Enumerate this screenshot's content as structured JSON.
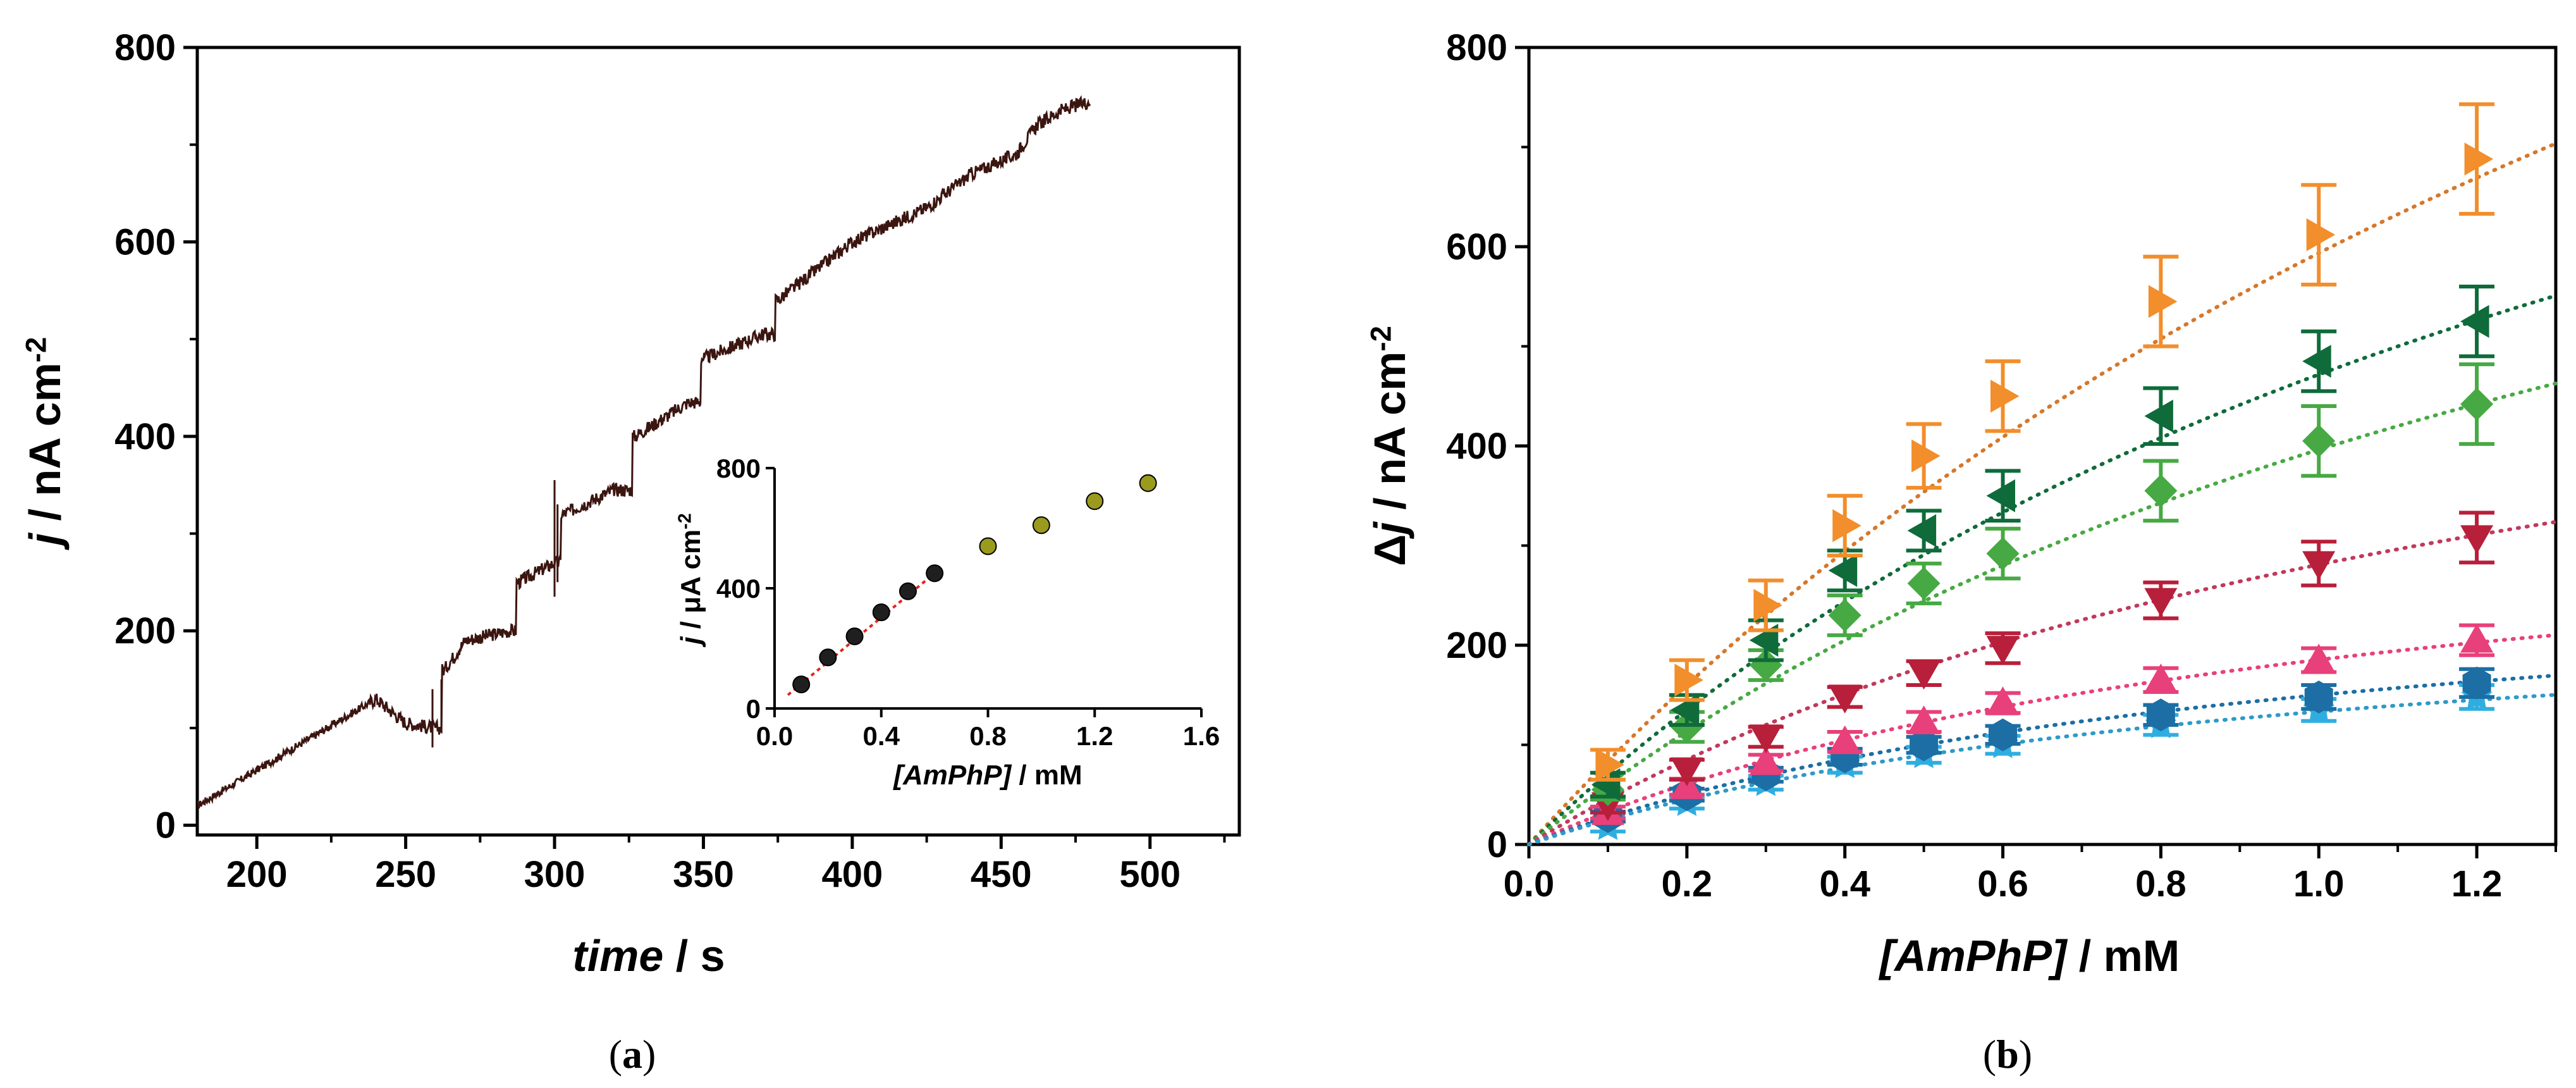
{
  "chart_data": [
    {
      "id": "a",
      "type": "line",
      "caption_letter": "a",
      "xlabel": {
        "italic": "time",
        "rest": " / s"
      },
      "ylabel": {
        "italic": "j",
        "rest": " / nA cm",
        "sup": "-2"
      },
      "xlim": [
        180,
        530
      ],
      "ylim": [
        -10,
        800
      ],
      "xticks": [
        200,
        250,
        300,
        350,
        400,
        450,
        500
      ],
      "yticks": [
        0,
        200,
        400,
        600,
        800
      ],
      "color": "#3b1510",
      "steps": [
        {
          "t": 180,
          "j": 20
        },
        {
          "t": 240,
          "j": 130
        },
        {
          "t": 250,
          "j": 105
        },
        {
          "t": 260,
          "j": 100
        },
        {
          "t": 263,
          "j": 160
        },
        {
          "t": 270,
          "j": 190
        },
        {
          "t": 285,
          "j": 200
        },
        {
          "t": 288,
          "j": 250
        },
        {
          "t": 300,
          "j": 270
        },
        {
          "t": 303,
          "j": 320
        },
        {
          "t": 320,
          "j": 345
        },
        {
          "t": 327,
          "j": 400
        },
        {
          "t": 345,
          "j": 435
        },
        {
          "t": 350,
          "j": 480
        },
        {
          "t": 370,
          "j": 505
        },
        {
          "t": 375,
          "j": 540
        },
        {
          "t": 400,
          "j": 600
        },
        {
          "t": 425,
          "j": 635
        },
        {
          "t": 440,
          "j": 670
        },
        {
          "t": 455,
          "j": 690
        },
        {
          "t": 462,
          "j": 720
        },
        {
          "t": 470,
          "j": 735
        },
        {
          "t": 480,
          "j": 745
        }
      ],
      "inset": {
        "type": "scatter",
        "xlabel": {
          "italic": "[AmPhP]",
          "rest": " / mM"
        },
        "ylabel": {
          "italic": "j",
          "rest": " / μA cm",
          "sup": "-2"
        },
        "xlim": [
          0,
          1.6
        ],
        "ylim": [
          0,
          800
        ],
        "xticks": [
          "0.0",
          "0.4",
          "0.8",
          "1.2",
          "1.6"
        ],
        "yticks": [
          0,
          400,
          800
        ],
        "series": [
          {
            "name": "linear",
            "color": "#1f1f1f",
            "x": [
              0.1,
              0.2,
              0.3,
              0.4,
              0.5,
              0.6
            ],
            "y": [
              80,
              170,
              240,
              320,
              390,
              450
            ]
          },
          {
            "name": "saturation",
            "color": "#9a9a1e",
            "x": [
              0.8,
              1.0,
              1.2,
              1.4
            ],
            "y": [
              540,
              610,
              690,
              750
            ]
          }
        ],
        "fit": {
          "color": "#e0251b",
          "x": [
            0.05,
            0.62
          ],
          "y": [
            45,
            465
          ]
        }
      }
    },
    {
      "id": "b",
      "type": "scatter",
      "caption_letter": "b",
      "xlabel": {
        "italic": "[AmPhP]",
        "rest": " / mM"
      },
      "ylabel": {
        "prefix": "Δ",
        "italic": "j",
        "rest": " / nA cm",
        "sup": "-2"
      },
      "xlim": [
        0.0,
        1.3
      ],
      "ylim": [
        0,
        800
      ],
      "xticks": [
        "0.0",
        "0.2",
        "0.4",
        "0.6",
        "0.8",
        "1.0",
        "1.2"
      ],
      "yticks": [
        0,
        200,
        400,
        600,
        800
      ],
      "x": [
        0.1,
        0.2,
        0.3,
        0.4,
        0.5,
        0.6,
        0.8,
        1.0,
        1.2
      ],
      "series": [
        {
          "name": "orange-right-triangle",
          "marker": "tri-right",
          "color": "#f28e2b",
          "fit": "#d6772a",
          "y": [
            80,
            165,
            240,
            320,
            390,
            450,
            545,
            612,
            688
          ],
          "err": [
            15,
            20,
            25,
            30,
            32,
            35,
            45,
            50,
            55
          ],
          "vmax": 1840,
          "km": 2.1
        },
        {
          "name": "dark-green-left-triangle",
          "marker": "tri-left",
          "color": "#0f6b3a",
          "fit": "#0f6b3a",
          "y": [
            60,
            135,
            205,
            275,
            315,
            350,
            430,
            485,
            525
          ],
          "err": [
            12,
            15,
            20,
            20,
            20,
            25,
            28,
            30,
            35
          ],
          "vmax": 1250,
          "km": 1.65
        },
        {
          "name": "green-diamond",
          "marker": "diamond",
          "color": "#47a943",
          "fit": "#47a943",
          "y": [
            55,
            118,
            180,
            230,
            262,
            292,
            355,
            405,
            442
          ],
          "err": [
            10,
            15,
            15,
            20,
            20,
            25,
            30,
            35,
            40
          ],
          "vmax": 1050,
          "km": 1.65
        },
        {
          "name": "red-down-triangle",
          "marker": "tri-down",
          "color": "#b81f3a",
          "fit": "#c0395c",
          "y": [
            40,
            75,
            108,
            148,
            172,
            197,
            245,
            282,
            308
          ],
          "err": [
            8,
            10,
            10,
            10,
            12,
            15,
            18,
            22,
            25
          ],
          "vmax": 660,
          "km": 1.35
        },
        {
          "name": "pink-up-triangle",
          "marker": "tri-up",
          "color": "#e8407a",
          "fit": "#e8407a",
          "y": [
            32,
            58,
            82,
            103,
            123,
            142,
            165,
            185,
            205
          ],
          "err": [
            6,
            8,
            8,
            10,
            10,
            10,
            12,
            12,
            15
          ],
          "vmax": 380,
          "km": 1.05
        },
        {
          "name": "blue-hexagon",
          "marker": "hexagon",
          "color": "#1c6ea4",
          "fit": "#1c6ea4",
          "y": [
            28,
            50,
            70,
            88,
            100,
            110,
            130,
            148,
            162
          ],
          "err": [
            5,
            6,
            7,
            8,
            8,
            9,
            10,
            12,
            14
          ],
          "vmax": 300,
          "km": 1.0
        },
        {
          "name": "light-blue-star",
          "marker": "star",
          "color": "#2eaee0",
          "fit": "#2e9ac8",
          "y": [
            18,
            42,
            62,
            80,
            90,
            100,
            120,
            135,
            148
          ],
          "err": [
            5,
            6,
            7,
            8,
            8,
            9,
            10,
            11,
            12
          ],
          "vmax": 260,
          "km": 0.95
        }
      ]
    }
  ]
}
